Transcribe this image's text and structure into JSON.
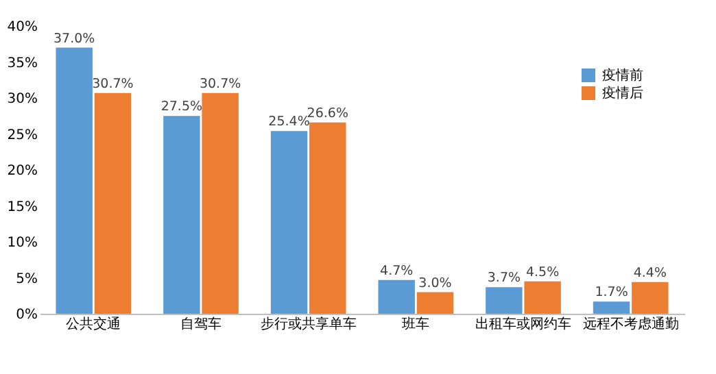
{
  "chart_data": {
    "type": "bar",
    "categories": [
      "公共交通",
      "自驾车",
      "步行或共享单车",
      "班车",
      "出租车或网约车",
      "远程不考虑通勤"
    ],
    "series": [
      {
        "name": "疫情前",
        "color": "#5b9bd5",
        "values": [
          37.0,
          27.5,
          25.4,
          4.7,
          3.7,
          1.7
        ],
        "value_labels": [
          "37.0%",
          "27.5%",
          "25.4%",
          "4.7%",
          "3.7%",
          "1.7%"
        ]
      },
      {
        "name": "疫情后",
        "color": "#ed7d31",
        "values": [
          30.7,
          30.7,
          26.6,
          3.0,
          4.5,
          4.4
        ],
        "value_labels": [
          "30.7%",
          "30.7%",
          "26.6%",
          "3.0%",
          "4.5%",
          "4.4%"
        ]
      }
    ],
    "ylim": [
      0,
      40
    ],
    "yticks": [
      {
        "value": 0,
        "label": "0%"
      },
      {
        "value": 5,
        "label": "5%"
      },
      {
        "value": 10,
        "label": "10%"
      },
      {
        "value": 15,
        "label": "15%"
      },
      {
        "value": 20,
        "label": "20%"
      },
      {
        "value": 25,
        "label": "25%"
      },
      {
        "value": 30,
        "label": "30%"
      },
      {
        "value": 35,
        "label": "35%"
      },
      {
        "value": 40,
        "label": "40%"
      }
    ],
    "grid": false,
    "legend": "top right"
  }
}
